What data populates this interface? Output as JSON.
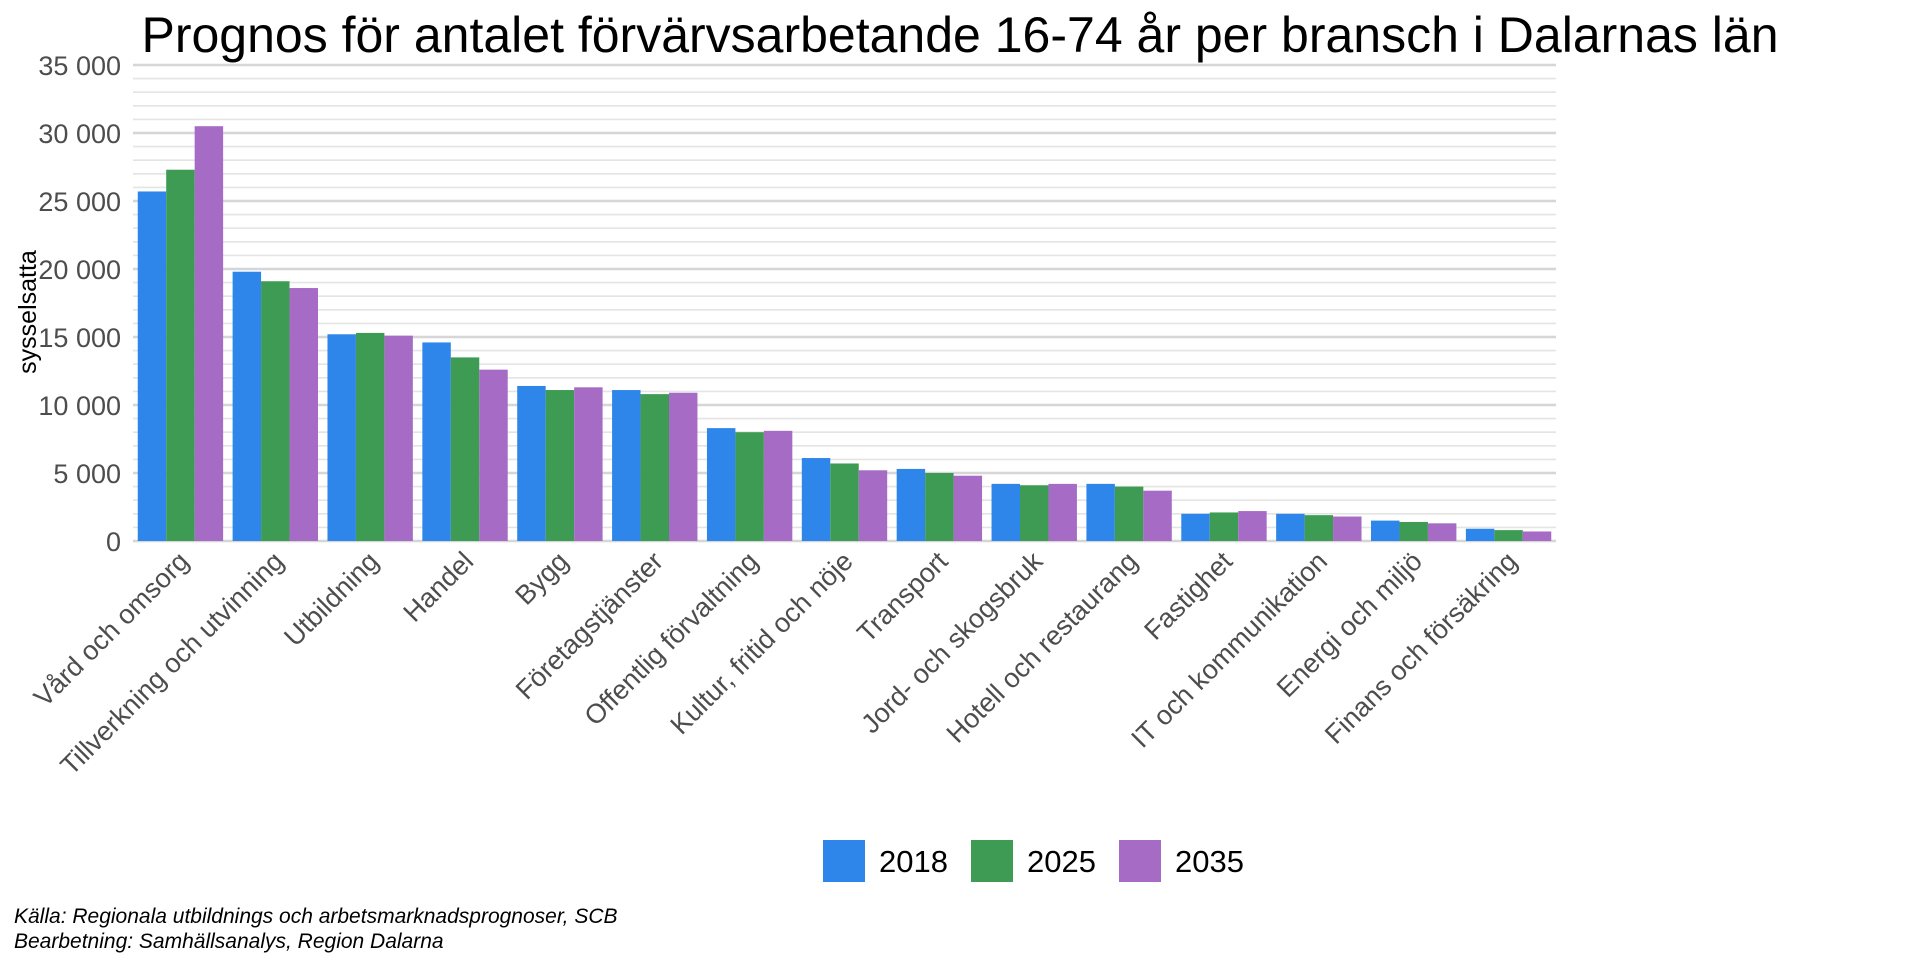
{
  "chart_data": {
    "type": "bar",
    "title": "Prognos för antalet förvärvsarbetande 16-74 år per bransch i Dalarnas län",
    "xlabel": "",
    "ylabel": "sysselsatta",
    "ylim": [
      0,
      35000
    ],
    "yticks": [
      0,
      5000,
      10000,
      15000,
      20000,
      25000,
      30000,
      35000
    ],
    "ytick_labels": [
      "0",
      "5 000",
      "10 000",
      "15 000",
      "20 000",
      "25 000",
      "30 000",
      "35 000"
    ],
    "grid": true,
    "legend_position": "bottom",
    "categories": [
      "Vård och omsorg",
      "Tillverkning och utvinning",
      "Utbildning",
      "Handel",
      "Bygg",
      "Företagstjänster",
      "Offentlig förvaltning",
      "Kultur, fritid och nöje",
      "Transport",
      "Jord- och skogsbruk",
      "Hotell och restaurang",
      "Fastighet",
      "IT och kommunikation",
      "Energi och miljö",
      "Finans och försäkring"
    ],
    "series": [
      {
        "name": "2018",
        "color": "#2f86ea",
        "values": [
          25700,
          19800,
          15200,
          14600,
          11400,
          11100,
          8300,
          6100,
          5300,
          4200,
          4200,
          2000,
          2000,
          1500,
          900
        ]
      },
      {
        "name": "2025",
        "color": "#3d9b54",
        "values": [
          27300,
          19100,
          15300,
          13500,
          11100,
          10800,
          8000,
          5700,
          5000,
          4100,
          4000,
          2100,
          1900,
          1400,
          800
        ]
      },
      {
        "name": "2035",
        "color": "#a66bc4",
        "values": [
          30500,
          18600,
          15100,
          12600,
          11300,
          10900,
          8100,
          5200,
          4800,
          4200,
          3700,
          2200,
          1800,
          1300,
          700
        ]
      }
    ],
    "caption": [
      "Källa: Regionala utbildnings och arbetsmarknadsprognoser, SCB",
      "Bearbetning: Samhällsanalys, Region Dalarna"
    ]
  }
}
